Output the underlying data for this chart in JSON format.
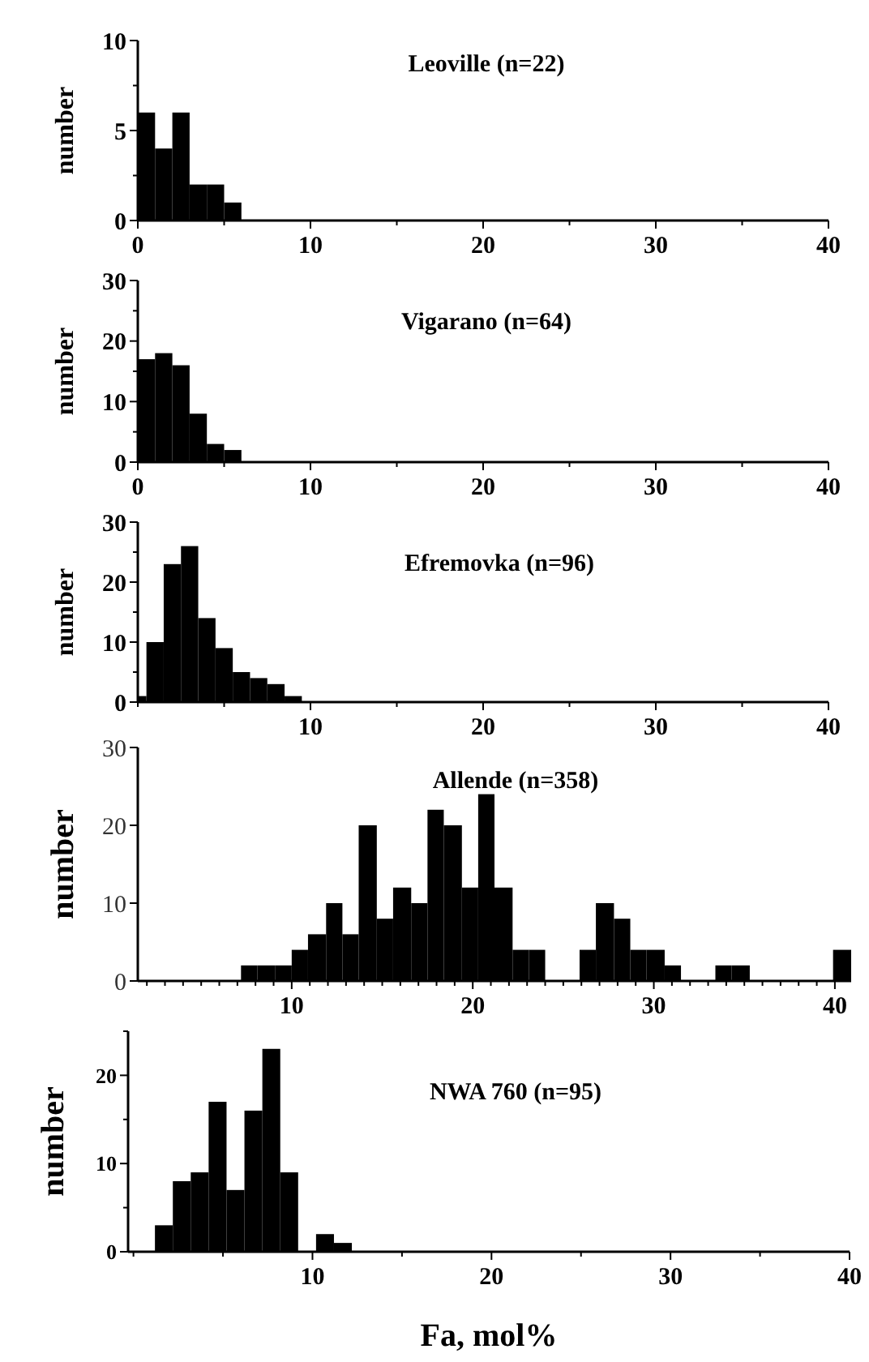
{
  "chart_data": [
    {
      "type": "histogram",
      "title": "Leoville (n=22)",
      "ylabel": "number",
      "color": "#000000",
      "bins": [
        0,
        1,
        2,
        3,
        4,
        5,
        6
      ],
      "values": [
        6,
        4,
        6,
        2,
        2,
        1
      ],
      "xlim": [
        0,
        40
      ],
      "xticks": [
        0,
        {
          "value": 5,
          "label": null
        },
        10,
        {
          "value": 15,
          "label": null
        },
        20,
        {
          "value": 25,
          "label": null
        },
        30,
        {
          "value": 35,
          "label": null
        },
        40
      ],
      "ylim": [
        0,
        10
      ],
      "yticks": [
        0,
        {
          "value": 2.5,
          "label": null
        },
        5,
        {
          "value": 7.5,
          "label": null
        },
        10
      ]
    },
    {
      "type": "histogram",
      "title": "Vigarano (n=64)",
      "ylabel": "number",
      "color": "#000000",
      "bins": [
        0,
        1,
        2,
        3,
        4,
        5,
        6
      ],
      "values": [
        17,
        18,
        16,
        8,
        3,
        2
      ],
      "xlim": [
        0,
        40
      ],
      "xticks": [
        0,
        {
          "value": 5,
          "label": null
        },
        10,
        {
          "value": 15,
          "label": null
        },
        20,
        {
          "value": 25,
          "label": null
        },
        30,
        {
          "value": 35,
          "label": null
        },
        40
      ],
      "ylim": [
        0,
        30
      ],
      "yticks": [
        0,
        {
          "value": 5,
          "label": null
        },
        10,
        {
          "value": 15,
          "label": null
        },
        20,
        {
          "value": 25,
          "label": null
        },
        30
      ]
    },
    {
      "type": "histogram",
      "title": "Efremovka (n=96)",
      "ylabel": "number",
      "color": "#000000",
      "bins": [
        0,
        0.5,
        1.5,
        2.5,
        3.5,
        4.5,
        5.5,
        6.5,
        7.5,
        8.5,
        9.5
      ],
      "values": [
        1,
        10,
        23,
        26,
        14,
        9,
        5,
        4,
        3,
        1
      ],
      "xlim": [
        0,
        40
      ],
      "xticks": [
        {
          "value": 0,
          "label": null
        },
        {
          "value": 5,
          "label": null
        },
        10,
        {
          "value": 15,
          "label": null
        },
        20,
        {
          "value": 25,
          "label": null
        },
        30,
        {
          "value": 35,
          "label": null
        },
        40
      ],
      "ylim": [
        0,
        30
      ],
      "yticks": [
        0,
        {
          "value": 5,
          "label": null
        },
        10,
        {
          "value": 15,
          "label": null
        },
        20,
        {
          "value": 25,
          "label": null
        },
        30
      ]
    },
    {
      "type": "histogram",
      "title": "Allende (n=358)",
      "ylabel": "number",
      "color": "#000000",
      "bins": [
        7.2,
        8.1,
        9.1,
        10.0,
        10.9,
        11.9,
        12.8,
        13.7,
        14.7,
        15.6,
        16.6,
        17.5,
        18.4,
        19.4,
        20.3,
        21.2,
        22.2,
        23.1,
        24.0,
        25.9,
        26.8,
        27.8,
        28.7,
        29.6,
        30.6,
        31.5,
        33.4,
        34.3,
        35.3,
        39.9,
        40.9
      ],
      "values": [
        2,
        2,
        2,
        4,
        6,
        10,
        6,
        20,
        8,
        12,
        10,
        22,
        20,
        12,
        24,
        12,
        4,
        4,
        0,
        4,
        10,
        8,
        4,
        4,
        2,
        0,
        2,
        2,
        0,
        4
      ],
      "xlim": [
        1.5,
        40.9
      ],
      "xticks": [
        {
          "value": 2,
          "label": null
        },
        {
          "value": 3,
          "label": null
        },
        {
          "value": 4,
          "label": null
        },
        {
          "value": 5,
          "label": null
        },
        {
          "value": 6,
          "label": null
        },
        {
          "value": 7,
          "label": null
        },
        {
          "value": 8,
          "label": null
        },
        {
          "value": 9,
          "label": null
        },
        10,
        {
          "value": 11,
          "label": null
        },
        {
          "value": 12,
          "label": null
        },
        {
          "value": 13,
          "label": null
        },
        {
          "value": 14,
          "label": null
        },
        {
          "value": 15,
          "label": null
        },
        {
          "value": 16,
          "label": null
        },
        {
          "value": 17,
          "label": null
        },
        {
          "value": 18,
          "label": null
        },
        {
          "value": 19,
          "label": null
        },
        20,
        {
          "value": 21,
          "label": null
        },
        {
          "value": 22,
          "label": null
        },
        {
          "value": 23,
          "label": null
        },
        {
          "value": 24,
          "label": null
        },
        {
          "value": 25,
          "label": null
        },
        {
          "value": 26,
          "label": null
        },
        {
          "value": 27,
          "label": null
        },
        {
          "value": 28,
          "label": null
        },
        {
          "value": 29,
          "label": null
        },
        30,
        {
          "value": 31,
          "label": null
        },
        {
          "value": 32,
          "label": null
        },
        {
          "value": 33,
          "label": null
        },
        {
          "value": 34,
          "label": null
        },
        {
          "value": 35,
          "label": null
        },
        {
          "value": 36,
          "label": null
        },
        {
          "value": 37,
          "label": null
        },
        {
          "value": 38,
          "label": null
        },
        {
          "value": 39,
          "label": null
        },
        40
      ],
      "ylim": [
        0,
        30
      ],
      "yticks": [
        0,
        10,
        20,
        30
      ]
    },
    {
      "type": "histogram",
      "title": "NWA 760 (n=95)",
      "xlabel": "Fa, mol%",
      "ylabel": "number",
      "color": "#000000",
      "bins": [
        1.2,
        2.2,
        3.2,
        4.2,
        5.2,
        6.2,
        7.2,
        8.2,
        9.2,
        10.2,
        11.2,
        12.2
      ],
      "values": [
        3,
        8,
        9,
        17,
        7,
        16,
        23,
        9,
        0,
        2,
        1
      ],
      "xlim": [
        -0.3,
        40
      ],
      "xticks": [
        {
          "value": 0,
          "label": null
        },
        {
          "value": 5,
          "label": null
        },
        10,
        {
          "value": 15,
          "label": null
        },
        20,
        {
          "value": 25,
          "label": null
        },
        30,
        {
          "value": 35,
          "label": null
        },
        40
      ],
      "ylim": [
        0,
        25
      ],
      "yticks": [
        0,
        {
          "value": 5,
          "label": null
        },
        10,
        {
          "value": 15,
          "label": null
        },
        20,
        {
          "value": 25,
          "label": null
        }
      ]
    }
  ]
}
